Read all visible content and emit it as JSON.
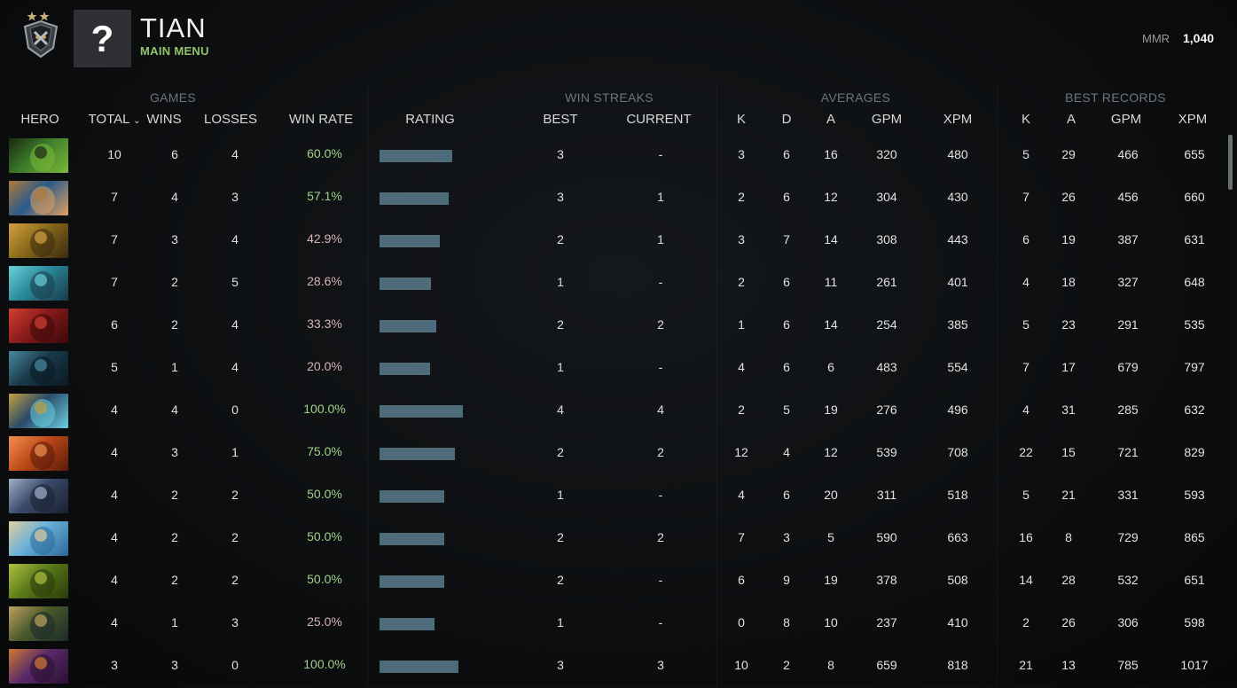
{
  "header": {
    "player_name": "TIAN",
    "sub_label": "MAIN MENU",
    "avatar_glyph": "?",
    "mmr_label": "MMR",
    "mmr_value": "1,040",
    "rank_badge_icon": "rank-medal-icon"
  },
  "groups": {
    "games": "GAMES",
    "win_streaks": "WIN STREAKS",
    "averages": "AVERAGES",
    "best_records": "BEST RECORDS"
  },
  "columns": {
    "hero": "HERO",
    "total": "TOTAL",
    "wins": "WINS",
    "losses": "LOSSES",
    "win_rate": "WIN RATE",
    "rating": "RATING",
    "best": "BEST",
    "current": "CURRENT",
    "avg_k": "K",
    "avg_d": "D",
    "avg_a": "A",
    "avg_gpm": "GPM",
    "avg_xpm": "XPM",
    "best_k": "K",
    "best_a": "A",
    "best_gpm": "GPM",
    "best_xpm": "XPM"
  },
  "colors": {
    "win_rate_good": "#9fd489",
    "win_rate_bad": "#d9b4b4",
    "rating_bar": "#4e6b7c"
  },
  "rows": [
    {
      "hero_colors": [
        "#3d7a2a",
        "#1a2a10",
        "#7ab83a"
      ],
      "total": "10",
      "wins": "6",
      "losses": "4",
      "win_rate": "60.0%",
      "good": true,
      "rating": 0.87,
      "best": "3",
      "current": "-",
      "k": "3",
      "d": "6",
      "a": "16",
      "gpm": "320",
      "xpm": "480",
      "bk": "5",
      "ba": "29",
      "bgpm": "466",
      "bxpm": "655"
    },
    {
      "hero_colors": [
        "#2a5a8a",
        "#b07a3a",
        "#e0a060"
      ],
      "total": "7",
      "wins": "4",
      "losses": "3",
      "win_rate": "57.1%",
      "good": true,
      "rating": 0.83,
      "best": "3",
      "current": "1",
      "k": "2",
      "d": "6",
      "a": "12",
      "gpm": "304",
      "xpm": "430",
      "bk": "7",
      "ba": "26",
      "bgpm": "456",
      "bxpm": "660"
    },
    {
      "hero_colors": [
        "#8a6a1a",
        "#d4a040",
        "#3a2a10"
      ],
      "total": "7",
      "wins": "3",
      "losses": "4",
      "win_rate": "42.9%",
      "good": false,
      "rating": 0.72,
      "best": "2",
      "current": "1",
      "k": "3",
      "d": "7",
      "a": "14",
      "gpm": "308",
      "xpm": "443",
      "bk": "6",
      "ba": "19",
      "bgpm": "387",
      "bxpm": "631"
    },
    {
      "hero_colors": [
        "#2a8a9a",
        "#6ad0d8",
        "#1a3a4a"
      ],
      "total": "7",
      "wins": "2",
      "losses": "5",
      "win_rate": "28.6%",
      "good": false,
      "rating": 0.62,
      "best": "1",
      "current": "-",
      "k": "2",
      "d": "6",
      "a": "11",
      "gpm": "261",
      "xpm": "401",
      "bk": "4",
      "ba": "18",
      "bgpm": "327",
      "bxpm": "648"
    },
    {
      "hero_colors": [
        "#8a1a1a",
        "#d04030",
        "#3a0a0a"
      ],
      "total": "6",
      "wins": "2",
      "losses": "4",
      "win_rate": "33.3%",
      "good": false,
      "rating": 0.68,
      "best": "2",
      "current": "2",
      "k": "1",
      "d": "6",
      "a": "14",
      "gpm": "254",
      "xpm": "385",
      "bk": "5",
      "ba": "23",
      "bgpm": "291",
      "bxpm": "535"
    },
    {
      "hero_colors": [
        "#1a3a4a",
        "#4a8aa0",
        "#0a1a22"
      ],
      "total": "5",
      "wins": "1",
      "losses": "4",
      "win_rate": "20.0%",
      "good": false,
      "rating": 0.61,
      "best": "1",
      "current": "-",
      "k": "4",
      "d": "6",
      "a": "6",
      "gpm": "483",
      "xpm": "554",
      "bk": "7",
      "ba": "17",
      "bgpm": "679",
      "bxpm": "797"
    },
    {
      "hero_colors": [
        "#2a4a6a",
        "#c0a040",
        "#6ad0e0"
      ],
      "total": "4",
      "wins": "4",
      "losses": "0",
      "win_rate": "100.0%",
      "good": true,
      "rating": 1.0,
      "best": "4",
      "current": "4",
      "k": "2",
      "d": "5",
      "a": "19",
      "gpm": "276",
      "xpm": "496",
      "bk": "4",
      "ba": "31",
      "bgpm": "285",
      "bxpm": "632"
    },
    {
      "hero_colors": [
        "#c04a1a",
        "#f09050",
        "#5a1a0a"
      ],
      "total": "4",
      "wins": "3",
      "losses": "1",
      "win_rate": "75.0%",
      "good": true,
      "rating": 0.9,
      "best": "2",
      "current": "2",
      "k": "12",
      "d": "4",
      "a": "12",
      "gpm": "539",
      "xpm": "708",
      "bk": "22",
      "ba": "15",
      "bgpm": "721",
      "bxpm": "829"
    },
    {
      "hero_colors": [
        "#3a4a6a",
        "#a0b0c8",
        "#1a2030"
      ],
      "total": "4",
      "wins": "2",
      "losses": "2",
      "win_rate": "50.0%",
      "good": true,
      "rating": 0.78,
      "best": "1",
      "current": "-",
      "k": "4",
      "d": "6",
      "a": "20",
      "gpm": "311",
      "xpm": "518",
      "bk": "5",
      "ba": "21",
      "bgpm": "331",
      "bxpm": "593"
    },
    {
      "hero_colors": [
        "#6ab0d8",
        "#e0d0a0",
        "#2a6a9a"
      ],
      "total": "4",
      "wins": "2",
      "losses": "2",
      "win_rate": "50.0%",
      "good": true,
      "rating": 0.78,
      "best": "2",
      "current": "2",
      "k": "7",
      "d": "3",
      "a": "5",
      "gpm": "590",
      "xpm": "663",
      "bk": "16",
      "ba": "8",
      "bgpm": "729",
      "bxpm": "865"
    },
    {
      "hero_colors": [
        "#5a7a1a",
        "#b0c040",
        "#2a3a0a"
      ],
      "total": "4",
      "wins": "2",
      "losses": "2",
      "win_rate": "50.0%",
      "good": true,
      "rating": 0.78,
      "best": "2",
      "current": "-",
      "k": "6",
      "d": "9",
      "a": "19",
      "gpm": "378",
      "xpm": "508",
      "bk": "14",
      "ba": "28",
      "bgpm": "532",
      "bxpm": "651"
    },
    {
      "hero_colors": [
        "#4a5a2a",
        "#c0a060",
        "#1a2a2a"
      ],
      "total": "4",
      "wins": "1",
      "losses": "3",
      "win_rate": "25.0%",
      "good": false,
      "rating": 0.66,
      "best": "1",
      "current": "-",
      "k": "0",
      "d": "8",
      "a": "10",
      "gpm": "237",
      "xpm": "410",
      "bk": "2",
      "ba": "26",
      "bgpm": "306",
      "bxpm": "598"
    },
    {
      "hero_colors": [
        "#5a2a6a",
        "#d07a30",
        "#2a1030"
      ],
      "total": "3",
      "wins": "3",
      "losses": "0",
      "win_rate": "100.0%",
      "good": true,
      "rating": 0.95,
      "best": "3",
      "current": "3",
      "k": "10",
      "d": "2",
      "a": "8",
      "gpm": "659",
      "xpm": "818",
      "bk": "21",
      "ba": "13",
      "bgpm": "785",
      "bxpm": "1017"
    }
  ]
}
